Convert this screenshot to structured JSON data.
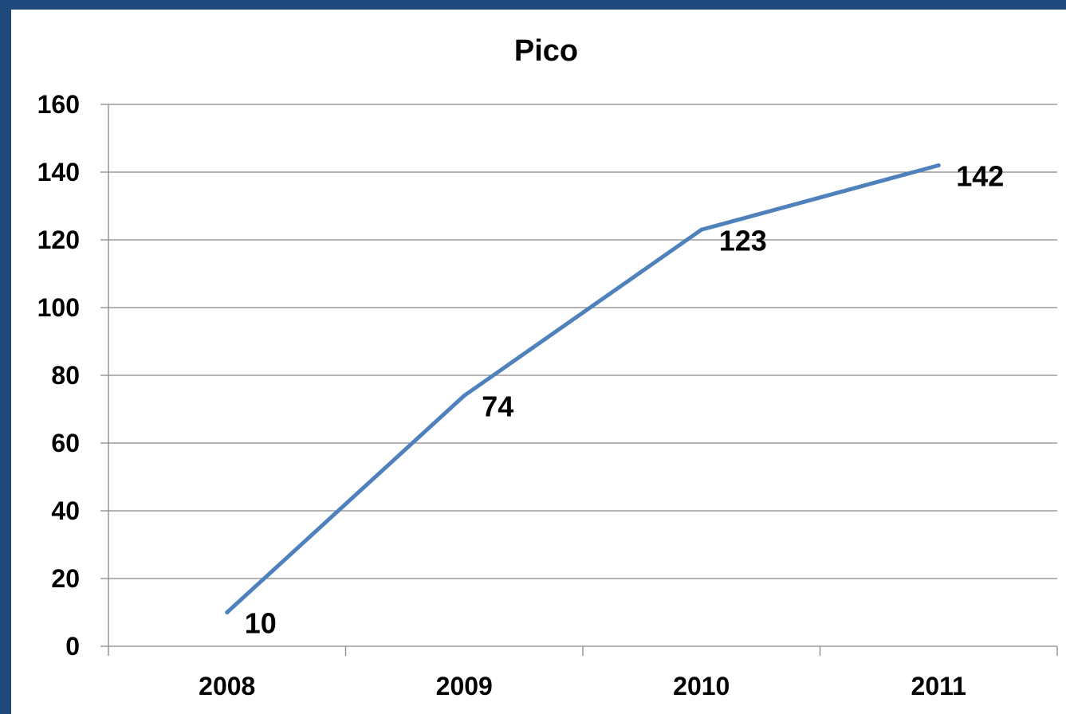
{
  "chart_data": {
    "type": "line",
    "title": "Pico",
    "xlabel": "",
    "ylabel": "",
    "categories": [
      "2008",
      "2009",
      "2010",
      "2011"
    ],
    "series": [
      {
        "values": [
          10,
          74,
          123,
          142
        ],
        "color": "#4f81bd"
      }
    ],
    "data_labels": [
      "10",
      "74",
      "123",
      "142"
    ],
    "ylim": [
      0,
      160
    ],
    "yticks": [
      0,
      20,
      40,
      60,
      80,
      100,
      120,
      140,
      160
    ],
    "grid": true,
    "legend": "none"
  },
  "colors": {
    "frame": "#1f497d",
    "line": "#4f81bd",
    "grid": "#868686"
  }
}
